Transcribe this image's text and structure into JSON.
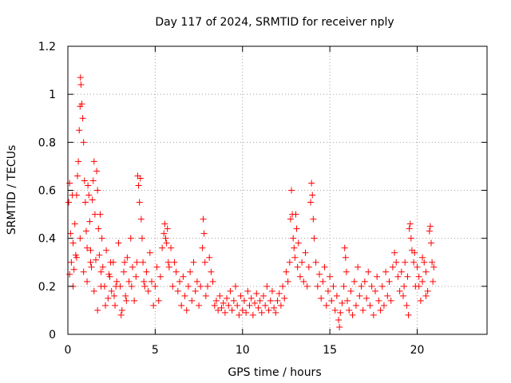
{
  "chart_data": {
    "type": "scatter",
    "title": "Day 117 of 2024, SRMTID for receiver nply",
    "xlabel": "GPS time / hours",
    "ylabel": "SRMTID / TECUs",
    "xlim": [
      0,
      24
    ],
    "ylim": [
      0,
      1.2
    ],
    "xticks": [
      0,
      5,
      10,
      15,
      20
    ],
    "xtick_labels": [
      "0",
      "5",
      "10",
      "15",
      "20"
    ],
    "yticks": [
      0,
      0.2,
      0.4,
      0.6,
      0.8,
      1.0,
      1.2
    ],
    "ytick_labels": [
      "0",
      "0.2",
      "0.4",
      "0.6",
      "0.8",
      "1",
      "1.2"
    ],
    "grid": true,
    "marker": "+",
    "marker_color": "#ff0000",
    "series": [
      {
        "name": "SRMTID",
        "points": [
          [
            0.05,
            0.55
          ],
          [
            0.1,
            0.63
          ],
          [
            0.15,
            0.42
          ],
          [
            0.2,
            0.3
          ],
          [
            0.25,
            0.58
          ],
          [
            0.3,
            0.38
          ],
          [
            0.35,
            0.27
          ],
          [
            0.4,
            0.46
          ],
          [
            0.45,
            0.33
          ],
          [
            0.5,
            0.58
          ],
          [
            0.55,
            0.66
          ],
          [
            0.6,
            0.72
          ],
          [
            0.65,
            0.85
          ],
          [
            0.7,
            0.95
          ],
          [
            0.72,
            1.07
          ],
          [
            0.75,
            1.04
          ],
          [
            0.8,
            0.96
          ],
          [
            0.85,
            0.9
          ],
          [
            0.9,
            0.8
          ],
          [
            0.95,
            0.64
          ],
          [
            1.0,
            0.55
          ],
          [
            1.05,
            0.43
          ],
          [
            1.1,
            0.36
          ],
          [
            1.15,
            0.62
          ],
          [
            1.2,
            0.58
          ],
          [
            1.25,
            0.47
          ],
          [
            1.3,
            0.35
          ],
          [
            1.35,
            0.28
          ],
          [
            1.4,
            0.56
          ],
          [
            1.45,
            0.64
          ],
          [
            1.5,
            0.72
          ],
          [
            1.55,
            0.5
          ],
          [
            1.6,
            0.31
          ],
          [
            1.65,
            0.68
          ],
          [
            1.7,
            0.6
          ],
          [
            1.75,
            0.44
          ],
          [
            1.8,
            0.33
          ],
          [
            1.85,
            0.5
          ],
          [
            1.9,
            0.26
          ],
          [
            1.95,
            0.4
          ],
          [
            0.1,
            0.25
          ],
          [
            0.3,
            0.2
          ],
          [
            0.5,
            0.32
          ],
          [
            0.7,
            0.4
          ],
          [
            0.9,
            0.26
          ],
          [
            1.1,
            0.22
          ],
          [
            1.3,
            0.3
          ],
          [
            1.5,
            0.18
          ],
          [
            1.7,
            0.1
          ],
          [
            1.9,
            0.2
          ],
          [
            2.0,
            0.28
          ],
          [
            2.1,
            0.2
          ],
          [
            2.2,
            0.35
          ],
          [
            2.3,
            0.15
          ],
          [
            2.4,
            0.24
          ],
          [
            2.5,
            0.18
          ],
          [
            2.6,
            0.3
          ],
          [
            2.7,
            0.12
          ],
          [
            2.8,
            0.22
          ],
          [
            2.9,
            0.38
          ],
          [
            3.0,
            0.2
          ],
          [
            3.1,
            0.1
          ],
          [
            3.2,
            0.26
          ],
          [
            3.3,
            0.16
          ],
          [
            3.4,
            0.32
          ],
          [
            3.5,
            0.22
          ],
          [
            3.6,
            0.4
          ],
          [
            3.7,
            0.28
          ],
          [
            3.8,
            0.14
          ],
          [
            3.9,
            0.24
          ],
          [
            2.15,
            0.12
          ],
          [
            2.45,
            0.3
          ],
          [
            2.75,
            0.2
          ],
          [
            3.05,
            0.08
          ],
          [
            3.35,
            0.14
          ],
          [
            3.65,
            0.2
          ],
          [
            3.95,
            0.3
          ],
          [
            2.35,
            0.25
          ],
          [
            2.65,
            0.16
          ],
          [
            3.25,
            0.3
          ],
          [
            4.0,
            0.66
          ],
          [
            4.05,
            0.62
          ],
          [
            4.1,
            0.55
          ],
          [
            4.15,
            0.65
          ],
          [
            4.2,
            0.48
          ],
          [
            4.25,
            0.4
          ],
          [
            4.3,
            0.3
          ],
          [
            4.35,
            0.22
          ],
          [
            4.4,
            0.2
          ],
          [
            4.5,
            0.26
          ],
          [
            4.6,
            0.18
          ],
          [
            4.7,
            0.34
          ],
          [
            4.8,
            0.22
          ],
          [
            4.9,
            0.12
          ],
          [
            5.0,
            0.2
          ],
          [
            5.1,
            0.28
          ],
          [
            5.2,
            0.14
          ],
          [
            5.3,
            0.24
          ],
          [
            5.4,
            0.36
          ],
          [
            5.5,
            0.42
          ],
          [
            5.55,
            0.46
          ],
          [
            5.6,
            0.4
          ],
          [
            5.65,
            0.38
          ],
          [
            5.7,
            0.44
          ],
          [
            5.75,
            0.3
          ],
          [
            5.8,
            0.28
          ],
          [
            5.9,
            0.36
          ],
          [
            6.0,
            0.2
          ],
          [
            6.1,
            0.3
          ],
          [
            6.2,
            0.26
          ],
          [
            6.3,
            0.18
          ],
          [
            6.4,
            0.22
          ],
          [
            6.5,
            0.12
          ],
          [
            6.6,
            0.24
          ],
          [
            6.7,
            0.16
          ],
          [
            6.8,
            0.1
          ],
          [
            6.9,
            0.2
          ],
          [
            7.0,
            0.26
          ],
          [
            7.1,
            0.14
          ],
          [
            7.2,
            0.3
          ],
          [
            7.3,
            0.18
          ],
          [
            7.4,
            0.22
          ],
          [
            7.5,
            0.12
          ],
          [
            7.6,
            0.2
          ],
          [
            7.7,
            0.36
          ],
          [
            7.75,
            0.48
          ],
          [
            7.8,
            0.42
          ],
          [
            7.85,
            0.3
          ],
          [
            7.9,
            0.16
          ],
          [
            8.0,
            0.2
          ],
          [
            8.1,
            0.32
          ],
          [
            8.2,
            0.26
          ],
          [
            8.3,
            0.22
          ],
          [
            8.4,
            0.12
          ],
          [
            8.5,
            0.14
          ],
          [
            8.6,
            0.1
          ],
          [
            8.7,
            0.16
          ],
          [
            8.8,
            0.11
          ],
          [
            8.9,
            0.13
          ],
          [
            9.0,
            0.09
          ],
          [
            9.1,
            0.15
          ],
          [
            9.2,
            0.12
          ],
          [
            9.3,
            0.18
          ],
          [
            9.4,
            0.1
          ],
          [
            9.5,
            0.14
          ],
          [
            9.6,
            0.2
          ],
          [
            9.7,
            0.12
          ],
          [
            9.8,
            0.08
          ],
          [
            9.9,
            0.16
          ],
          [
            10.0,
            0.1
          ],
          [
            10.1,
            0.14
          ],
          [
            10.2,
            0.09
          ],
          [
            10.3,
            0.18
          ],
          [
            10.4,
            0.12
          ],
          [
            10.5,
            0.15
          ],
          [
            10.6,
            0.08
          ],
          [
            10.7,
            0.13
          ],
          [
            10.8,
            0.17
          ],
          [
            10.9,
            0.11
          ],
          [
            11.0,
            0.14
          ],
          [
            11.1,
            0.09
          ],
          [
            11.2,
            0.16
          ],
          [
            11.3,
            0.12
          ],
          [
            11.4,
            0.2
          ],
          [
            11.5,
            0.1
          ],
          [
            11.6,
            0.14
          ],
          [
            11.7,
            0.18
          ],
          [
            11.8,
            0.11
          ],
          [
            11.9,
            0.09
          ],
          [
            12.0,
            0.14
          ],
          [
            12.1,
            0.17
          ],
          [
            12.2,
            0.12
          ],
          [
            12.3,
            0.2
          ],
          [
            12.4,
            0.15
          ],
          [
            12.5,
            0.26
          ],
          [
            12.6,
            0.22
          ],
          [
            12.7,
            0.3
          ],
          [
            12.75,
            0.48
          ],
          [
            12.8,
            0.6
          ],
          [
            12.85,
            0.5
          ],
          [
            12.9,
            0.4
          ],
          [
            12.95,
            0.36
          ],
          [
            13.0,
            0.32
          ],
          [
            13.05,
            0.5
          ],
          [
            13.1,
            0.44
          ],
          [
            13.15,
            0.28
          ],
          [
            13.2,
            0.38
          ],
          [
            13.3,
            0.24
          ],
          [
            13.4,
            0.3
          ],
          [
            13.5,
            0.22
          ],
          [
            13.6,
            0.34
          ],
          [
            13.7,
            0.2
          ],
          [
            13.8,
            0.28
          ],
          [
            13.9,
            0.55
          ],
          [
            13.95,
            0.63
          ],
          [
            14.0,
            0.58
          ],
          [
            14.05,
            0.48
          ],
          [
            14.1,
            0.4
          ],
          [
            14.2,
            0.3
          ],
          [
            14.3,
            0.2
          ],
          [
            14.4,
            0.25
          ],
          [
            14.5,
            0.15
          ],
          [
            14.6,
            0.22
          ],
          [
            14.7,
            0.28
          ],
          [
            14.8,
            0.12
          ],
          [
            14.9,
            0.18
          ],
          [
            15.0,
            0.24
          ],
          [
            15.1,
            0.14
          ],
          [
            15.2,
            0.2
          ],
          [
            15.3,
            0.1
          ],
          [
            15.4,
            0.16
          ],
          [
            15.5,
            0.06
          ],
          [
            15.55,
            0.03
          ],
          [
            15.6,
            0.09
          ],
          [
            15.7,
            0.13
          ],
          [
            15.8,
            0.2
          ],
          [
            15.85,
            0.36
          ],
          [
            15.9,
            0.32
          ],
          [
            15.95,
            0.26
          ],
          [
            16.0,
            0.14
          ],
          [
            16.1,
            0.1
          ],
          [
            16.2,
            0.18
          ],
          [
            16.3,
            0.08
          ],
          [
            16.4,
            0.22
          ],
          [
            16.5,
            0.12
          ],
          [
            16.6,
            0.28
          ],
          [
            16.7,
            0.16
          ],
          [
            16.8,
            0.2
          ],
          [
            16.9,
            0.1
          ],
          [
            17.0,
            0.22
          ],
          [
            17.1,
            0.15
          ],
          [
            17.2,
            0.26
          ],
          [
            17.3,
            0.12
          ],
          [
            17.4,
            0.2
          ],
          [
            17.5,
            0.08
          ],
          [
            17.6,
            0.18
          ],
          [
            17.7,
            0.24
          ],
          [
            17.8,
            0.14
          ],
          [
            17.9,
            0.1
          ],
          [
            18.0,
            0.2
          ],
          [
            18.1,
            0.12
          ],
          [
            18.2,
            0.26
          ],
          [
            18.3,
            0.16
          ],
          [
            18.4,
            0.22
          ],
          [
            18.5,
            0.14
          ],
          [
            18.6,
            0.28
          ],
          [
            18.7,
            0.34
          ],
          [
            18.8,
            0.3
          ],
          [
            18.9,
            0.24
          ],
          [
            19.0,
            0.18
          ],
          [
            19.1,
            0.26
          ],
          [
            19.2,
            0.16
          ],
          [
            19.3,
            0.3
          ],
          [
            19.4,
            0.12
          ],
          [
            19.5,
            0.08
          ],
          [
            19.55,
            0.44
          ],
          [
            19.6,
            0.46
          ],
          [
            19.65,
            0.4
          ],
          [
            19.7,
            0.35
          ],
          [
            19.8,
            0.3
          ],
          [
            19.9,
            0.2
          ],
          [
            20.0,
            0.28
          ],
          [
            20.1,
            0.24
          ],
          [
            20.2,
            0.14
          ],
          [
            20.3,
            0.22
          ],
          [
            20.4,
            0.3
          ],
          [
            20.5,
            0.26
          ],
          [
            20.6,
            0.18
          ],
          [
            20.7,
            0.43
          ],
          [
            20.75,
            0.45
          ],
          [
            20.8,
            0.38
          ],
          [
            20.85,
            0.3
          ],
          [
            20.9,
            0.22
          ],
          [
            20.95,
            0.28
          ],
          [
            20.5,
            0.16
          ],
          [
            20.3,
            0.32
          ],
          [
            20.1,
            0.2
          ],
          [
            19.85,
            0.34
          ],
          [
            19.45,
            0.24
          ],
          [
            19.25,
            0.2
          ]
        ]
      }
    ]
  }
}
